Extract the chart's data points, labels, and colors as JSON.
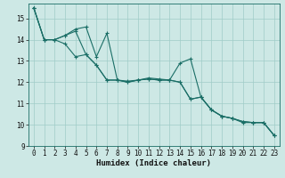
{
  "xlabel": "Humidex (Indice chaleur)",
  "bg_color": "#cde8e5",
  "grid_color": "#a0ccc8",
  "line_color": "#1a6e66",
  "xlim": [
    -0.5,
    23.5
  ],
  "ylim": [
    9,
    15.7
  ],
  "yticks": [
    9,
    10,
    11,
    12,
    13,
    14,
    15
  ],
  "xticks": [
    0,
    1,
    2,
    3,
    4,
    5,
    6,
    7,
    8,
    9,
    10,
    11,
    12,
    13,
    14,
    15,
    16,
    17,
    18,
    19,
    20,
    21,
    22,
    23
  ],
  "series": [
    [
      15.5,
      14.0,
      14.0,
      14.2,
      14.5,
      14.6,
      13.2,
      14.3,
      12.1,
      12.0,
      12.1,
      12.2,
      12.15,
      12.1,
      12.9,
      13.1,
      11.3,
      10.7,
      10.4,
      10.3,
      10.1,
      10.1,
      10.1,
      9.5
    ],
    [
      15.5,
      14.0,
      14.0,
      14.2,
      14.4,
      13.3,
      12.8,
      12.1,
      12.1,
      12.0,
      12.1,
      12.15,
      12.1,
      12.1,
      12.0,
      11.2,
      11.3,
      10.7,
      10.4,
      10.3,
      10.15,
      10.1,
      10.1,
      9.5
    ],
    [
      15.5,
      14.0,
      14.0,
      13.8,
      13.2,
      13.3,
      12.8,
      12.1,
      12.1,
      12.05,
      12.1,
      12.15,
      12.1,
      12.1,
      12.0,
      11.2,
      11.3,
      10.7,
      10.4,
      10.3,
      10.15,
      10.1,
      10.1,
      9.5
    ]
  ],
  "tick_fontsize": 5.5,
  "xlabel_fontsize": 6.5
}
